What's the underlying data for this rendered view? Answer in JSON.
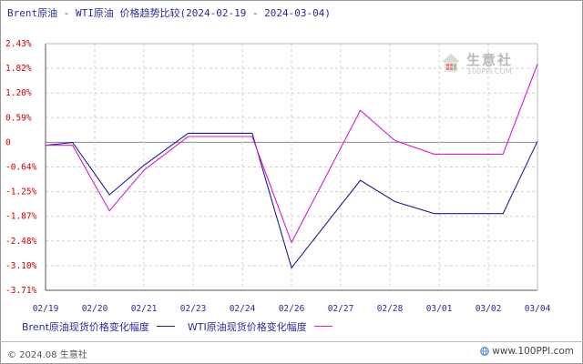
{
  "title": "Brent原油 - WTI原油 价格趋势比较(2024-02-19 - 2024-03-04)",
  "watermark": {
    "name": "生意社",
    "url": "100PPI.COM",
    "icon": "house-logo-icon"
  },
  "colors": {
    "brent": "#1f1f8a",
    "wti": "#d61cd6",
    "axis": "#555555",
    "grid": "#d0d0d0",
    "label": "#2b2b9a"
  },
  "chart_data": {
    "type": "line",
    "title": "Brent原油 - WTI原油 价格趋势比较(2024-02-19 - 2024-03-04)",
    "x": [
      "02/19",
      "02/20",
      "02/21",
      "02/23",
      "02/24",
      "02/26",
      "02/27",
      "02/28",
      "03/01",
      "03/02",
      "03/04"
    ],
    "yticks": [
      "2.43%",
      "1.82%",
      "1.20%",
      "0.59%",
      "0",
      "-0.64%",
      "-1.25%",
      "-1.87%",
      "-2.48%",
      "-3.10%",
      "-3.71%"
    ],
    "ylim": [
      -3.71,
      2.43
    ],
    "grid": true,
    "legend_position": "bottom",
    "series": [
      {
        "name": "Brent原油现货价格变化幅度",
        "points": [
          {
            "x": 0.0,
            "y": -0.1
          },
          {
            "x": 0.55,
            "y": -0.03
          },
          {
            "x": 1.3,
            "y": -1.33
          },
          {
            "x": 2.0,
            "y": -0.6
          },
          {
            "x": 2.9,
            "y": 0.2
          },
          {
            "x": 4.2,
            "y": 0.2
          },
          {
            "x": 5.0,
            "y": -3.15
          },
          {
            "x": 6.4,
            "y": -0.97
          },
          {
            "x": 7.1,
            "y": -1.5
          },
          {
            "x": 7.9,
            "y": -1.8
          },
          {
            "x": 9.3,
            "y": -1.8
          },
          {
            "x": 10.0,
            "y": 0.0
          }
        ]
      },
      {
        "name": "WTI原油现货价格变化幅度",
        "points": [
          {
            "x": 0.0,
            "y": -0.1
          },
          {
            "x": 0.55,
            "y": -0.1
          },
          {
            "x": 1.3,
            "y": -1.73
          },
          {
            "x": 2.0,
            "y": -0.72
          },
          {
            "x": 2.9,
            "y": 0.12
          },
          {
            "x": 4.2,
            "y": 0.12
          },
          {
            "x": 5.0,
            "y": -2.52
          },
          {
            "x": 6.4,
            "y": 0.77
          },
          {
            "x": 7.1,
            "y": 0.02
          },
          {
            "x": 7.9,
            "y": -0.32
          },
          {
            "x": 9.3,
            "y": -0.32
          },
          {
            "x": 10.0,
            "y": 1.92
          }
        ]
      }
    ]
  },
  "legend": {
    "items": [
      {
        "label": "Brent原油现货价格变化幅度"
      },
      {
        "label": "WTI原油现货价格变化幅度"
      }
    ]
  },
  "footer": {
    "copyright": "© 2024.08 生意社",
    "url": "www.100PPI.com",
    "globe_icon": "globe-icon"
  }
}
